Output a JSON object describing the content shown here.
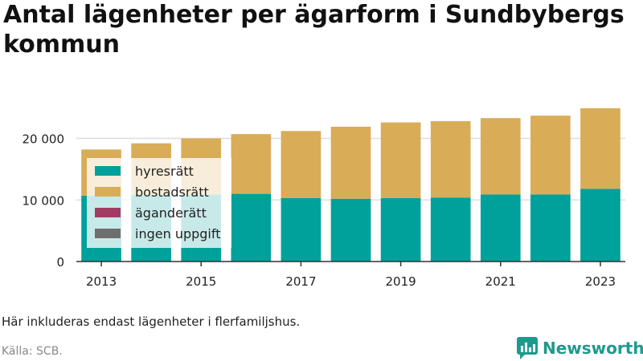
{
  "title": "Antal lägenheter per ägarform i Sundbybergs kommun",
  "note": "Här inkluderas endast lägenheter i flerfamiljshus.",
  "source": "Källa: SCB.",
  "brand": {
    "name": "Newsworthy",
    "icon": "bar-chart-logo-icon",
    "color": "#1e9a8d"
  },
  "chart_data": {
    "type": "bar",
    "stacked": true,
    "categories": [
      "2013",
      "2014",
      "2015",
      "2016",
      "2017",
      "2018",
      "2019",
      "2020",
      "2021",
      "2022",
      "2023"
    ],
    "x_tick_labels": [
      "2013",
      "2015",
      "2017",
      "2019",
      "2021",
      "2023"
    ],
    "y_tick_labels": [
      "0",
      "10 000",
      "20 000"
    ],
    "y_ticks": [
      0,
      10000,
      20000
    ],
    "ylim": [
      0,
      27500
    ],
    "grid": true,
    "legend_position": "top-left",
    "series": [
      {
        "name": "hyresrätt",
        "color": "#00a19a",
        "values": [
          10700,
          10800,
          10900,
          11000,
          10300,
          10200,
          10300,
          10400,
          10900,
          10900,
          11800
        ]
      },
      {
        "name": "bostadsrätt",
        "color": "#d9ac58",
        "values": [
          7500,
          8400,
          9100,
          9700,
          10900,
          11700,
          12300,
          12400,
          12400,
          12800,
          13100
        ]
      },
      {
        "name": "äganderätt",
        "color": "#a23c63",
        "values": [
          0,
          0,
          0,
          0,
          0,
          0,
          0,
          0,
          0,
          0,
          0
        ]
      },
      {
        "name": "ingen uppgift",
        "color": "#6e6e6e",
        "values": [
          0,
          0,
          0,
          0,
          0,
          0,
          0,
          0,
          0,
          0,
          0
        ]
      }
    ]
  }
}
